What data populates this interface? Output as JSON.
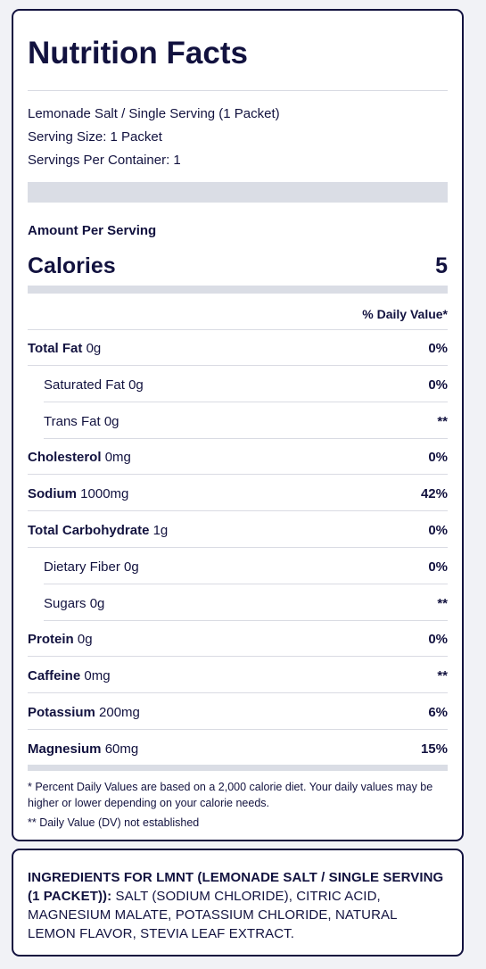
{
  "title": "Nutrition Facts",
  "serving": {
    "product": "Lemonade Salt / Single Serving (1 Packet)",
    "size": "Serving Size: 1 Packet",
    "per_container": "Servings Per Container: 1"
  },
  "amount_per_serving": "Amount Per Serving",
  "calories": {
    "label": "Calories",
    "value": "5"
  },
  "daily_value_header": "% Daily Value*",
  "nutrients": [
    {
      "name": "Total Fat",
      "amount": "0g",
      "dv": "0%",
      "indent": false
    },
    {
      "name": "Saturated Fat",
      "amount": "0g",
      "dv": "0%",
      "indent": true
    },
    {
      "name": "Trans Fat",
      "amount": "0g",
      "dv": "**",
      "indent": true
    },
    {
      "name": "Cholesterol",
      "amount": "0mg",
      "dv": "0%",
      "indent": false
    },
    {
      "name": "Sodium",
      "amount": "1000mg",
      "dv": "42%",
      "indent": false
    },
    {
      "name": "Total Carbohydrate",
      "amount": "1g",
      "dv": "0%",
      "indent": false
    },
    {
      "name": "Dietary Fiber",
      "amount": "0g",
      "dv": "0%",
      "indent": true
    },
    {
      "name": "Sugars",
      "amount": "0g",
      "dv": "**",
      "indent": true
    },
    {
      "name": "Protein",
      "amount": "0g",
      "dv": "0%",
      "indent": false
    },
    {
      "name": "Caffeine",
      "amount": "0mg",
      "dv": "**",
      "indent": false
    },
    {
      "name": "Potassium",
      "amount": "200mg",
      "dv": "6%",
      "indent": false
    },
    {
      "name": "Magnesium",
      "amount": "60mg",
      "dv": "15%",
      "indent": false
    }
  ],
  "footnotes": {
    "dv_basis": "* Percent Daily Values are based on a 2,000 calorie diet. Your daily values may be higher or lower depending on your calorie needs.",
    "not_established": "** Daily Value (DV) not established"
  },
  "ingredients": {
    "heading": "INGREDIENTS FOR LMNT (LEMONADE SALT / SINGLE SERVING (1 PACKET)):",
    "list": "SALT (SODIUM CHLORIDE), CITRIC ACID, MAGNESIUM MALATE, POTASSIUM CHLORIDE, NATURAL LEMON FLAVOR, STEVIA LEAF EXTRACT."
  },
  "colors": {
    "text": "#12123f",
    "bar": "#dadde5",
    "page_bg": "#f1f2f6"
  }
}
